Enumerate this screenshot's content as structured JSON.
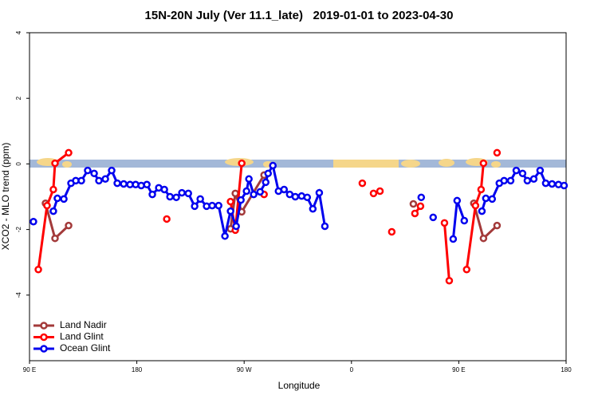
{
  "chart_data": {
    "type": "line",
    "title": "15N-20N July (Ver 11.1_late)   2019-01-01 to 2023-04-30",
    "x_label": "Longitude",
    "y_label": "XCO2 - MLO trend (ppm)",
    "xlim": [
      90,
      540
    ],
    "xticks": [
      {
        "value": 90,
        "label": "90 E"
      },
      180,
      {
        "value": 270,
        "label": "90 W"
      },
      {
        "value": 360,
        "label": "0"
      },
      {
        "value": 450,
        "label": "90 E"
      },
      {
        "value": 540,
        "label": "180"
      }
    ],
    "ylim": [
      -6,
      4
    ],
    "yticks": [
      -4,
      -2,
      0,
      2,
      4
    ],
    "legend": "bottom-left",
    "series": [
      {
        "name": "Land Nadir",
        "color": "#a33a3a",
        "x": [
          103.4,
          111.4,
          122.8,
          null,
          258.6,
          262.6,
          268,
          286.7,
          null,
          411.9,
          null,
          462.6,
          470.7,
          482.1
        ],
        "values": [
          -1.2,
          -2.27,
          -1.88,
          null,
          -1.98,
          -0.9,
          -1.46,
          -0.34,
          null,
          -1.22,
          null,
          -1.2,
          -2.27,
          -1.88
        ]
      },
      {
        "name": "Land Glint",
        "color": "#ff0000",
        "x": [
          97.4,
          104.7,
          110,
          111.4,
          122.8,
          null,
          205.1,
          null,
          258.6,
          262.6,
          268,
          null,
          286.7,
          null,
          369.1,
          null,
          378.5,
          383.9,
          null,
          393.8,
          null,
          413.2,
          417.9,
          null,
          438,
          442,
          null,
          456.6,
          464,
          468.7,
          470.7,
          null,
          482.1
        ],
        "values": [
          -3.22,
          -1.27,
          -0.78,
          0.02,
          0.34,
          null,
          -1.68,
          null,
          -1.15,
          -2.02,
          0.02,
          null,
          -0.93,
          null,
          -0.59,
          null,
          -0.9,
          -0.83,
          null,
          -2.07,
          null,
          -1.51,
          -1.29,
          null,
          -1.8,
          -3.56,
          null,
          -3.22,
          -1.27,
          -0.78,
          0.02,
          null,
          0.34
        ]
      },
      {
        "name": "Ocean Glint",
        "color": "#0000ee",
        "x": [
          93.3,
          null,
          110,
          113.4,
          118.8,
          124.8,
          128.8,
          133.5,
          138.8,
          144.2,
          148.2,
          153.6,
          158.9,
          163.6,
          169,
          174.3,
          179,
          183.7,
          188.4,
          193,
          198.4,
          203.1,
          207.8,
          213.1,
          217.8,
          223.2,
          228.5,
          233.2,
          238.5,
          243.2,
          248.6,
          253.9,
          258.6,
          263.3,
          267.3,
          272,
          274,
          278,
          283.4,
          288.1,
          290.1,
          294.1,
          298.8,
          303.5,
          308.2,
          312.9,
          318.2,
          322.9,
          327.6,
          333,
          337.7,
          null,
          418.5,
          null,
          428.5,
          null,
          445.3,
          448.6,
          454.6,
          null,
          469.4,
          472.7,
          478,
          484,
          488,
          493.5,
          498.2,
          503.5,
          507.5,
          512.9,
          518.2,
          522.9,
          528.2,
          533.6,
          538.3
        ],
        "values": [
          -1.76,
          null,
          -1.44,
          -1.05,
          -1.07,
          -0.59,
          -0.51,
          -0.51,
          -0.2,
          -0.29,
          -0.51,
          -0.46,
          -0.2,
          -0.59,
          -0.61,
          -0.63,
          -0.63,
          -0.66,
          -0.63,
          -0.93,
          -0.73,
          -0.78,
          -1.0,
          -1.02,
          -0.88,
          -0.9,
          -1.29,
          -1.07,
          -1.29,
          -1.27,
          -1.27,
          -2.2,
          -1.44,
          -1.9,
          -1.1,
          -0.83,
          -0.46,
          -0.93,
          -0.85,
          -0.56,
          -0.29,
          -0.05,
          -0.83,
          -0.78,
          -0.93,
          -1.0,
          -0.98,
          -1.02,
          -1.37,
          -0.88,
          -1.9,
          null,
          -1.02,
          null,
          -1.63,
          null,
          -2.29,
          -1.12,
          -1.73,
          null,
          -1.44,
          -1.05,
          -1.07,
          -0.59,
          -0.51,
          -0.51,
          -0.2,
          -0.29,
          -0.51,
          -0.46,
          -0.2,
          -0.59,
          -0.61,
          -0.63,
          -0.66
        ]
      }
    ]
  }
}
